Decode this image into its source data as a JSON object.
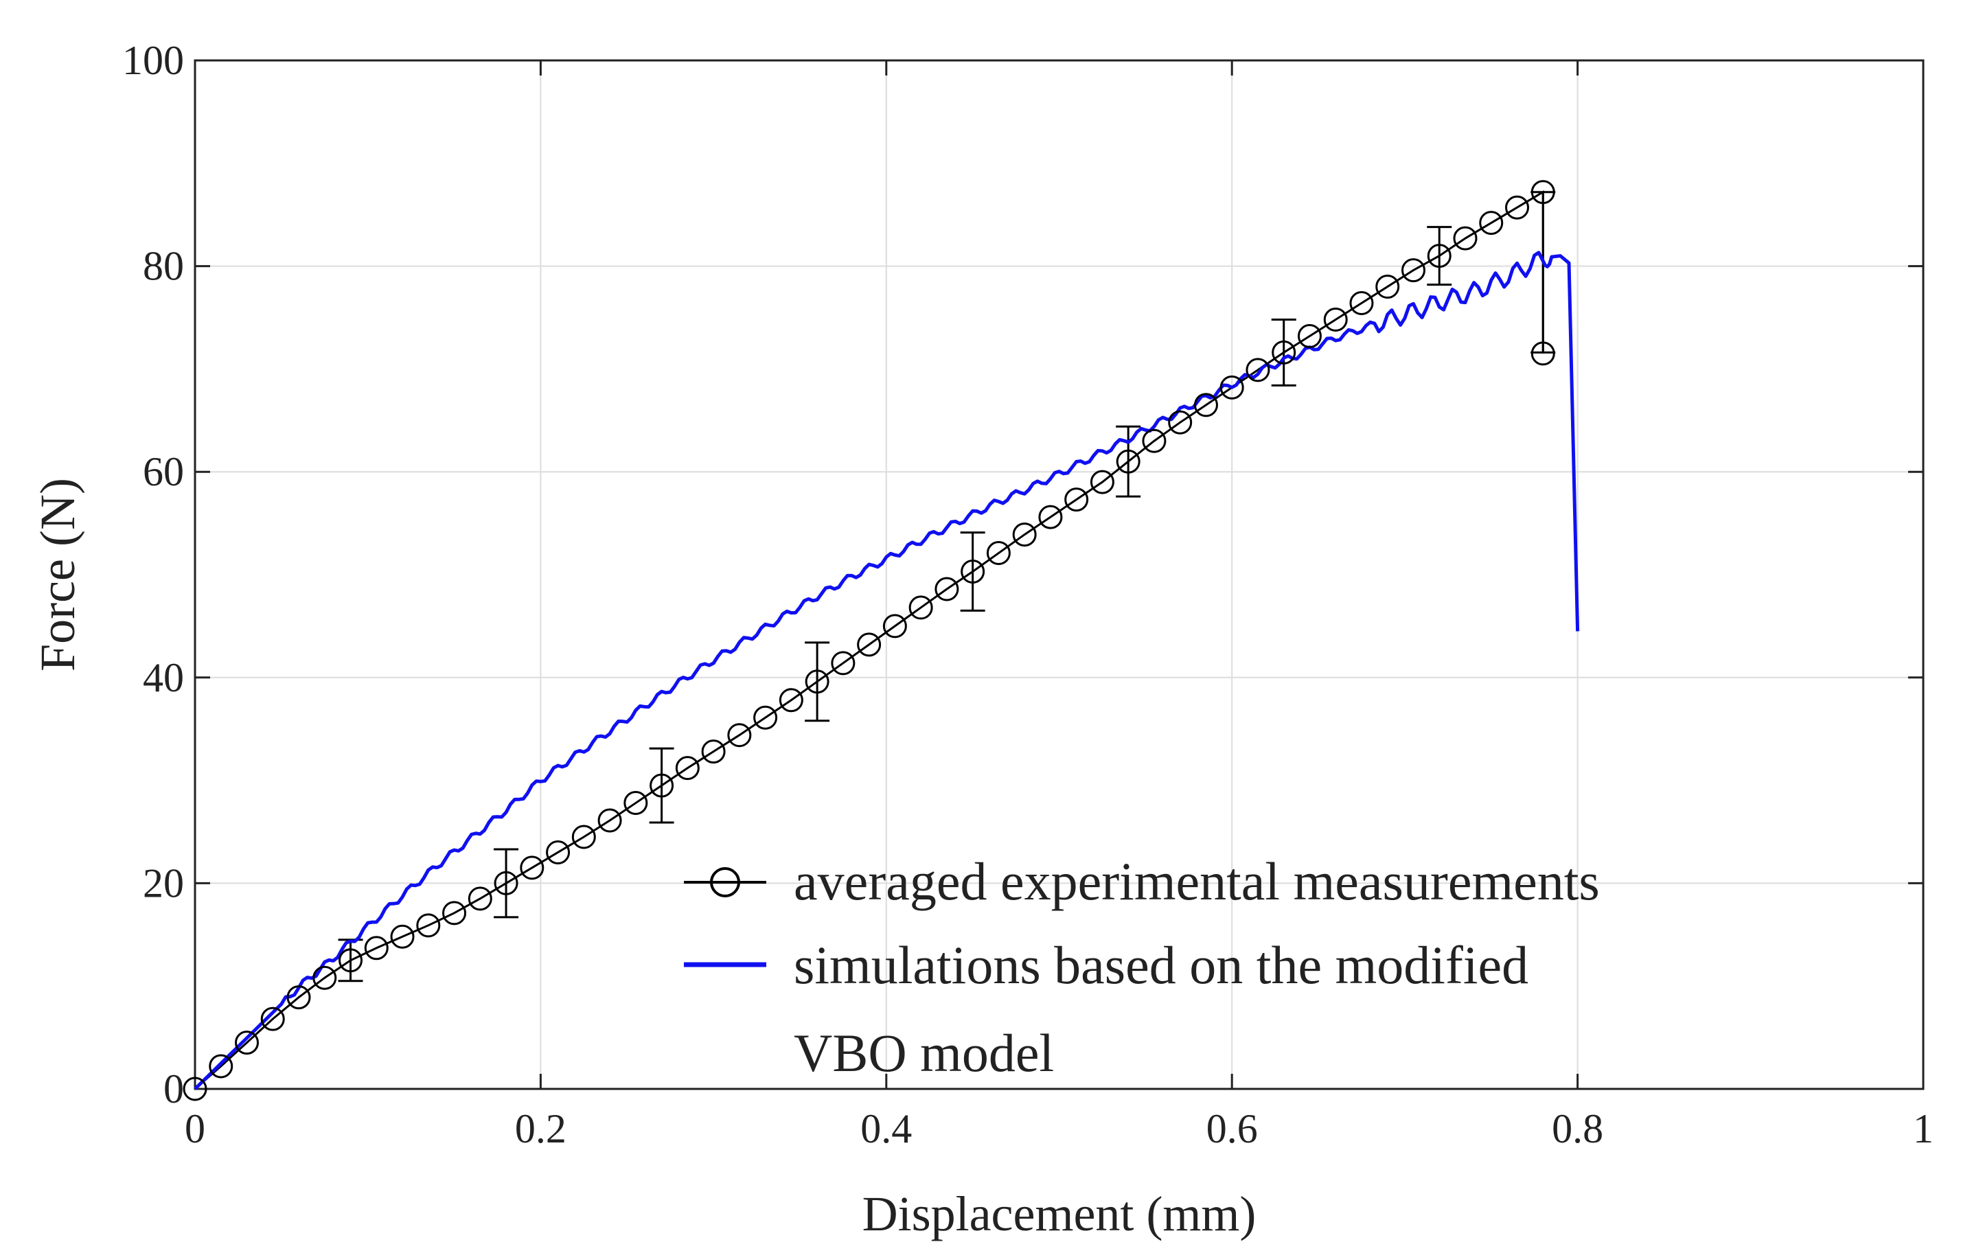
{
  "chart_data": {
    "type": "line",
    "title": "",
    "xlabel": "Displacement (mm)",
    "ylabel": "Force (N)",
    "xlim": [
      0,
      1
    ],
    "ylim": [
      0,
      100
    ],
    "xticks": [
      0,
      0.2,
      0.4,
      0.6,
      0.8,
      1
    ],
    "yticks": [
      0,
      20,
      40,
      60,
      80,
      100
    ],
    "xtick_labels": [
      "0",
      "0.2",
      "0.4",
      "0.6",
      "0.8",
      "1"
    ],
    "ytick_labels": [
      "0",
      "20",
      "40",
      "60",
      "80",
      "100"
    ],
    "grid": true,
    "legend_position": "lower-right",
    "series": [
      {
        "name": "averaged experimental measurements",
        "color": "#000000",
        "marker": "open-circle",
        "x": [
          0,
          0.015,
          0.03,
          0.045,
          0.06,
          0.075,
          0.09,
          0.105,
          0.12,
          0.135,
          0.15,
          0.165,
          0.18,
          0.195,
          0.21,
          0.225,
          0.24,
          0.255,
          0.27,
          0.285,
          0.3,
          0.315,
          0.33,
          0.345,
          0.36,
          0.375,
          0.39,
          0.405,
          0.42,
          0.435,
          0.45,
          0.465,
          0.48,
          0.495,
          0.51,
          0.525,
          0.54,
          0.555,
          0.57,
          0.585,
          0.6,
          0.615,
          0.63,
          0.645,
          0.66,
          0.675,
          0.69,
          0.705,
          0.72,
          0.735,
          0.75,
          0.765,
          0.78,
          0.78
        ],
        "y": [
          0,
          2.2,
          4.5,
          6.8,
          8.9,
          10.8,
          12.5,
          13.7,
          14.8,
          15.9,
          17.1,
          18.5,
          20.0,
          21.5,
          23.0,
          24.5,
          26.1,
          27.8,
          29.5,
          31.2,
          32.8,
          34.4,
          36.1,
          37.8,
          39.6,
          41.4,
          43.2,
          45.0,
          46.8,
          48.6,
          50.3,
          52.1,
          53.9,
          55.6,
          57.3,
          59.0,
          61.0,
          63.0,
          64.8,
          66.5,
          68.2,
          69.9,
          71.6,
          73.2,
          74.8,
          76.4,
          78.0,
          79.6,
          81.0,
          82.7,
          84.2,
          85.7,
          87.2,
          71.5
        ]
      },
      {
        "name": "simulations based on the modified VBO model",
        "color": "#1010f0",
        "marker": "none",
        "x": [
          0,
          0.02,
          0.04,
          0.06,
          0.08,
          0.1,
          0.12,
          0.14,
          0.16,
          0.18,
          0.2,
          0.22,
          0.24,
          0.26,
          0.28,
          0.3,
          0.32,
          0.34,
          0.36,
          0.38,
          0.4,
          0.42,
          0.44,
          0.46,
          0.48,
          0.5,
          0.52,
          0.54,
          0.56,
          0.58,
          0.6,
          0.62,
          0.64,
          0.66,
          0.68,
          0.7,
          0.72,
          0.74,
          0.76,
          0.78,
          0.79,
          0.795,
          0.8
        ],
        "y": [
          0,
          3.3,
          6.6,
          9.9,
          12.7,
          15.8,
          18.8,
          21.7,
          24.4,
          27.1,
          30.0,
          32.4,
          34.8,
          37.2,
          39.5,
          41.7,
          43.8,
          45.9,
          47.9,
          49.8,
          51.5,
          53.3,
          55.0,
          56.7,
          58.2,
          59.8,
          61.5,
          63.2,
          65.0,
          66.8,
          68.5,
          70.1,
          71.5,
          73.0,
          74.2,
          75.3,
          76.5,
          77.5,
          79.0,
          80.8,
          81.0,
          80.3,
          44.5
        ]
      }
    ],
    "error_bars": {
      "x": [
        0.09,
        0.18,
        0.27,
        0.36,
        0.45,
        0.54,
        0.63,
        0.72,
        0.78
      ],
      "y": [
        12.5,
        20.0,
        29.5,
        39.6,
        50.3,
        61.0,
        71.6,
        81.0,
        79.4
      ],
      "err": [
        2.0,
        3.3,
        3.6,
        3.8,
        3.8,
        3.4,
        3.2,
        2.8,
        7.8
      ]
    }
  },
  "legend": {
    "entries": [
      {
        "lines": [
          "averaged experimental measurements"
        ]
      },
      {
        "lines": [
          "simulations based on the modified",
          "VBO model"
        ]
      }
    ]
  }
}
